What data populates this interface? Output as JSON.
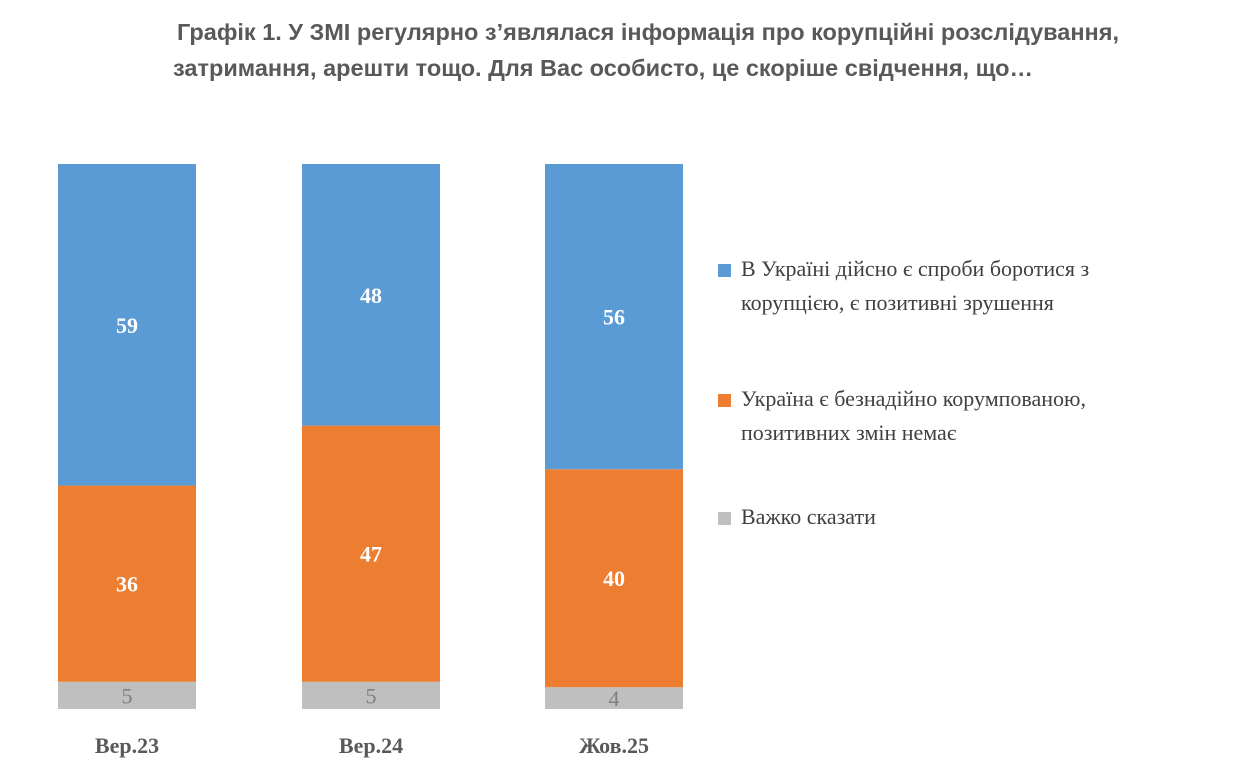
{
  "title": {
    "line1": "Графік 1. У ЗМІ регулярно з’являлася інформація про корупційні розслідування,",
    "line2": "затримання, арешти тощо. Для Вас особисто, це скоріше свідчення, що…"
  },
  "chart_data": {
    "type": "bar",
    "stacked": true,
    "categories": [
      "Вер.23",
      "Вер.24",
      "Жов.25"
    ],
    "series": [
      {
        "name": "В Україні дійсно є спроби боротися з корупцією, є позитивні зрушення",
        "color": "#5B9BD5",
        "values": [
          59,
          48,
          56
        ]
      },
      {
        "name": "Україна є безнадійно корумпованою, позитивних змін немає",
        "color": "#ED7D31",
        "values": [
          36,
          47,
          40
        ]
      },
      {
        "name": "Важко сказати",
        "color": "#BFBFBF",
        "values": [
          5,
          5,
          4
        ]
      }
    ],
    "ylim": [
      0,
      100
    ],
    "data_labels": true,
    "legend_position": "right",
    "grid": false
  },
  "legend": {
    "items": [
      {
        "line1": "В Україні дійсно є спроби боротися з",
        "line2": "корупцією, є позитивні зрушення"
      },
      {
        "line1": "Україна є безнадійно корумпованою,",
        "line2": "позитивних змін немає"
      },
      {
        "line1": "Важко сказати",
        "line2": ""
      }
    ]
  }
}
